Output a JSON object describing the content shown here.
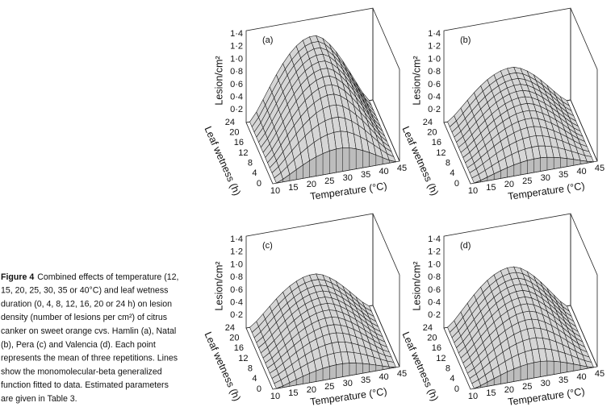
{
  "panels": [
    {
      "label": "(a)"
    },
    {
      "label": "(b)"
    },
    {
      "label": "(c)"
    },
    {
      "label": "(d)"
    }
  ],
  "axes": {
    "z_label": "Lesion/cm²",
    "z_ticks": [
      "1·4",
      "1·2",
      "1·0",
      "0·8",
      "0·6",
      "0·4",
      "0·2"
    ],
    "w_label": "Leaf wetness (h)",
    "w_ticks": [
      "0",
      "4",
      "8",
      "12",
      "16",
      "20",
      "24"
    ],
    "t_label": "Temperature (°C)",
    "t_ticks": [
      "10",
      "15",
      "20",
      "25",
      "30",
      "35",
      "40",
      "45"
    ]
  },
  "caption": {
    "label": "Figure 4",
    "lines": [
      "Combined effects of temperature (12,",
      "15, 20, 25, 30, 35 or 40°C) and leaf wetness",
      "duration (0, 4, 8, 12, 16, 20 or 24 h) on lesion",
      "density (number of lesions per cm²) of citrus",
      "canker on sweet orange cvs. Hamlin (a), Natal",
      "(b), Pera (c) and Valencia (d). Each point",
      "represents the mean of three repetitions. Lines",
      "show the monomolecular-beta generalized",
      "function fitted to data. Estimated parameters",
      "are given in Table 3."
    ]
  }
}
